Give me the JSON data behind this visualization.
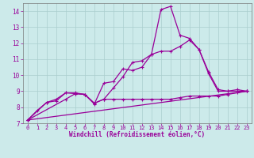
{
  "xlabel": "Windchill (Refroidissement éolien,°C)",
  "bg_color": "#cceaea",
  "grid_color": "#aacece",
  "line_color": "#990099",
  "xlim": [
    -0.5,
    23.5
  ],
  "ylim": [
    7,
    14.5
  ],
  "xticks": [
    0,
    1,
    2,
    3,
    4,
    5,
    6,
    7,
    8,
    9,
    10,
    11,
    12,
    13,
    14,
    15,
    16,
    17,
    18,
    19,
    20,
    21,
    22,
    23
  ],
  "yticks": [
    7,
    8,
    9,
    10,
    11,
    12,
    13,
    14
  ],
  "line1_x": [
    0,
    1,
    2,
    3,
    4,
    5,
    6,
    7,
    8,
    9,
    10,
    11,
    12,
    13,
    14,
    15,
    16,
    17,
    18,
    19,
    20,
    21,
    22,
    23
  ],
  "line1_y": [
    7.2,
    7.8,
    8.3,
    8.4,
    8.9,
    8.9,
    8.8,
    8.2,
    9.5,
    9.6,
    10.4,
    10.3,
    10.5,
    11.3,
    14.1,
    14.3,
    12.5,
    12.3,
    11.6,
    10.1,
    9.0,
    9.0,
    9.1,
    9.0
  ],
  "line2_x": [
    0,
    2,
    3,
    4,
    5,
    6,
    7,
    8,
    9,
    10,
    11,
    12,
    13,
    14,
    15,
    16,
    17,
    18,
    19,
    20,
    21,
    22,
    23
  ],
  "line2_y": [
    7.2,
    8.3,
    8.5,
    8.9,
    8.85,
    8.8,
    8.25,
    8.5,
    9.2,
    9.9,
    10.8,
    10.9,
    11.3,
    11.5,
    11.5,
    11.8,
    12.2,
    11.6,
    10.2,
    9.1,
    9.0,
    9.0,
    9.0
  ],
  "line3_x": [
    0,
    4,
    5,
    6,
    7,
    8,
    9,
    10,
    11,
    12,
    13,
    14,
    15,
    16,
    17,
    18,
    19,
    20,
    21,
    22,
    23
  ],
  "line3_y": [
    7.2,
    8.5,
    8.85,
    8.8,
    8.25,
    8.5,
    8.5,
    8.5,
    8.5,
    8.5,
    8.5,
    8.5,
    8.5,
    8.6,
    8.7,
    8.7,
    8.7,
    8.7,
    8.8,
    8.9,
    9.0
  ],
  "line4_x": [
    0,
    23
  ],
  "line4_y": [
    7.2,
    9.0
  ]
}
